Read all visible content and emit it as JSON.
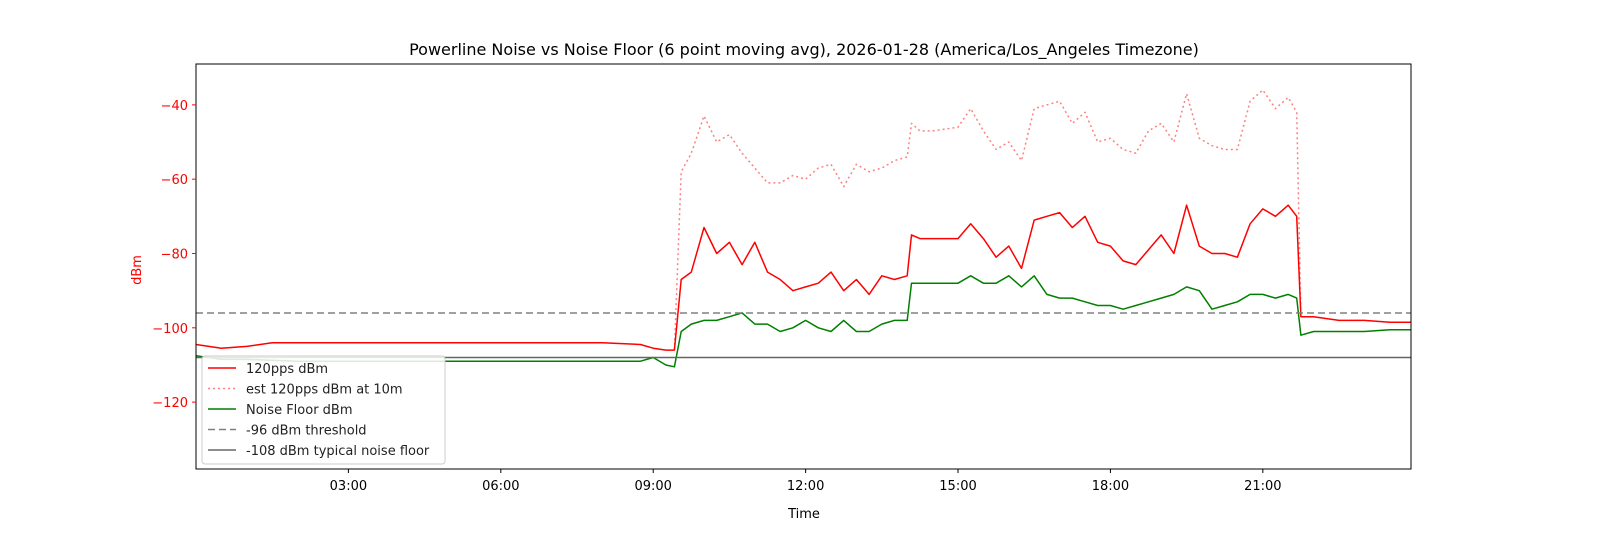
{
  "chart_data": {
    "type": "line",
    "title": "Powerline Noise vs Noise Floor (6 point moving avg), 2026-01-28 (America/Los_Angeles Timezone)",
    "xlabel": "Time",
    "ylabel": "dBm",
    "xlim": [
      "00:00",
      "23:55"
    ],
    "ylim": [
      -138,
      -29
    ],
    "x_ticks": [
      "03:00",
      "06:00",
      "09:00",
      "12:00",
      "15:00",
      "18:00",
      "21:00"
    ],
    "y_ticks": [
      -40,
      -60,
      -80,
      -100,
      -120
    ],
    "grid": false,
    "legend_position": "lower-left",
    "colors": {
      "signal": "#ff0000",
      "estimate": "#ff8080",
      "noise_floor": "#008000",
      "threshold": "#808080",
      "typical": "#666666",
      "y_axis": "#ff0000"
    },
    "series": [
      {
        "name": "120pps dBm",
        "style": "solid",
        "color": "#ff0000",
        "x": [
          "00:00",
          "00:30",
          "01:00",
          "01:30",
          "02:00",
          "04:00",
          "06:00",
          "08:00",
          "08:45",
          "09:00",
          "09:15",
          "09:25",
          "09:33",
          "09:45",
          "10:00",
          "10:15",
          "10:30",
          "10:45",
          "11:00",
          "11:15",
          "11:30",
          "11:45",
          "12:00",
          "12:15",
          "12:30",
          "12:45",
          "13:00",
          "13:15",
          "13:30",
          "13:45",
          "14:00",
          "14:05",
          "14:15",
          "14:30",
          "15:00",
          "15:15",
          "15:30",
          "15:45",
          "16:00",
          "16:15",
          "16:30",
          "16:45",
          "17:00",
          "17:15",
          "17:30",
          "17:45",
          "18:00",
          "18:15",
          "18:30",
          "18:45",
          "19:00",
          "19:15",
          "19:30",
          "19:45",
          "20:00",
          "20:15",
          "20:30",
          "20:45",
          "21:00",
          "21:15",
          "21:30",
          "21:40",
          "21:45",
          "22:00",
          "22:30",
          "23:00",
          "23:30",
          "23:55"
        ],
        "y": [
          -104.5,
          -105.5,
          -105,
          -104,
          -104,
          -104,
          -104,
          -104,
          -104.5,
          -105.5,
          -106,
          -106,
          -87,
          -85,
          -73,
          -80,
          -77,
          -83,
          -77,
          -85,
          -87,
          -90,
          -89,
          -88,
          -85,
          -90,
          -87,
          -91,
          -86,
          -87,
          -86,
          -75,
          -76,
          -76,
          -76,
          -72,
          -76,
          -81,
          -78,
          -84,
          -71,
          -70,
          -69,
          -73,
          -70,
          -77,
          -78,
          -82,
          -83,
          -79,
          -75,
          -80,
          -67,
          -78,
          -80,
          -80,
          -81,
          -72,
          -68,
          -70,
          -67,
          -70,
          -97,
          -97,
          -98,
          -98,
          -98.5,
          -98.5
        ]
      },
      {
        "name": "est 120pps dBm at 10m",
        "style": "dotted",
        "color": "#ff8080",
        "x": [
          "00:00",
          "09:25",
          "09:33",
          "09:45",
          "10:00",
          "10:15",
          "10:30",
          "10:45",
          "11:00",
          "11:15",
          "11:30",
          "11:45",
          "12:00",
          "12:15",
          "12:30",
          "12:45",
          "13:00",
          "13:15",
          "13:30",
          "13:45",
          "14:00",
          "14:05",
          "14:15",
          "14:30",
          "15:00",
          "15:15",
          "15:30",
          "15:45",
          "16:00",
          "16:15",
          "16:30",
          "16:45",
          "17:00",
          "17:15",
          "17:30",
          "17:45",
          "18:00",
          "18:15",
          "18:30",
          "18:45",
          "19:00",
          "19:15",
          "19:30",
          "19:45",
          "20:00",
          "20:15",
          "20:30",
          "20:45",
          "21:00",
          "21:15",
          "21:30",
          "21:40",
          "21:45"
        ],
        "y": [
          null,
          -106,
          -58,
          -53,
          -43,
          -50,
          -48,
          -53,
          -57,
          -61,
          -61,
          -59,
          -60,
          -57,
          -56,
          -62,
          -56,
          -58,
          -57,
          -55,
          -54,
          -45,
          -47,
          -47,
          -46,
          -41,
          -47,
          -52,
          -50,
          -55,
          -41,
          -40,
          -39,
          -45,
          -42,
          -50,
          -49,
          -52,
          -53,
          -47,
          -45,
          -50,
          -37,
          -49,
          -51,
          -52,
          -52,
          -39,
          -36,
          -41,
          -38,
          -42,
          -97
        ]
      },
      {
        "name": "Noise Floor dBm",
        "style": "solid",
        "color": "#008000",
        "x": [
          "00:00",
          "00:30",
          "01:00",
          "02:00",
          "04:00",
          "06:00",
          "08:00",
          "08:45",
          "09:00",
          "09:15",
          "09:25",
          "09:33",
          "09:45",
          "10:00",
          "10:15",
          "10:30",
          "10:45",
          "11:00",
          "11:15",
          "11:30",
          "11:45",
          "12:00",
          "12:15",
          "12:30",
          "12:45",
          "13:00",
          "13:15",
          "13:30",
          "13:45",
          "14:00",
          "14:05",
          "14:15",
          "14:30",
          "15:00",
          "15:15",
          "15:30",
          "15:45",
          "16:00",
          "16:15",
          "16:30",
          "16:45",
          "17:00",
          "17:15",
          "17:30",
          "17:45",
          "18:00",
          "18:15",
          "18:30",
          "18:45",
          "19:00",
          "19:15",
          "19:30",
          "19:45",
          "20:00",
          "20:15",
          "20:30",
          "20:45",
          "21:00",
          "21:15",
          "21:30",
          "21:40",
          "21:45",
          "22:00",
          "22:30",
          "23:00",
          "23:30",
          "23:55"
        ],
        "y": [
          -107.5,
          -108.5,
          -108.5,
          -109,
          -109,
          -109,
          -109,
          -109,
          -108,
          -110,
          -110.5,
          -101,
          -99,
          -98,
          -98,
          -97,
          -96,
          -99,
          -99,
          -101,
          -100,
          -98,
          -100,
          -101,
          -98,
          -101,
          -101,
          -99,
          -98,
          -98,
          -88,
          -88,
          -88,
          -88,
          -86,
          -88,
          -88,
          -86,
          -89,
          -86,
          -91,
          -92,
          -92,
          -93,
          -94,
          -94,
          -95,
          -94,
          -93,
          -92,
          -91,
          -89,
          -90,
          -95,
          -94,
          -93,
          -91,
          -91,
          -92,
          -91,
          -92,
          -102,
          -101,
          -101,
          -101,
          -100.5,
          -100.5
        ]
      }
    ],
    "reference_lines": [
      {
        "name": "-96 dBm threshold",
        "value": -96,
        "style": "dashed",
        "color": "#808080"
      },
      {
        "name": "-108 dBm typical noise floor",
        "value": -108,
        "style": "solid",
        "color": "#666666"
      }
    ]
  }
}
